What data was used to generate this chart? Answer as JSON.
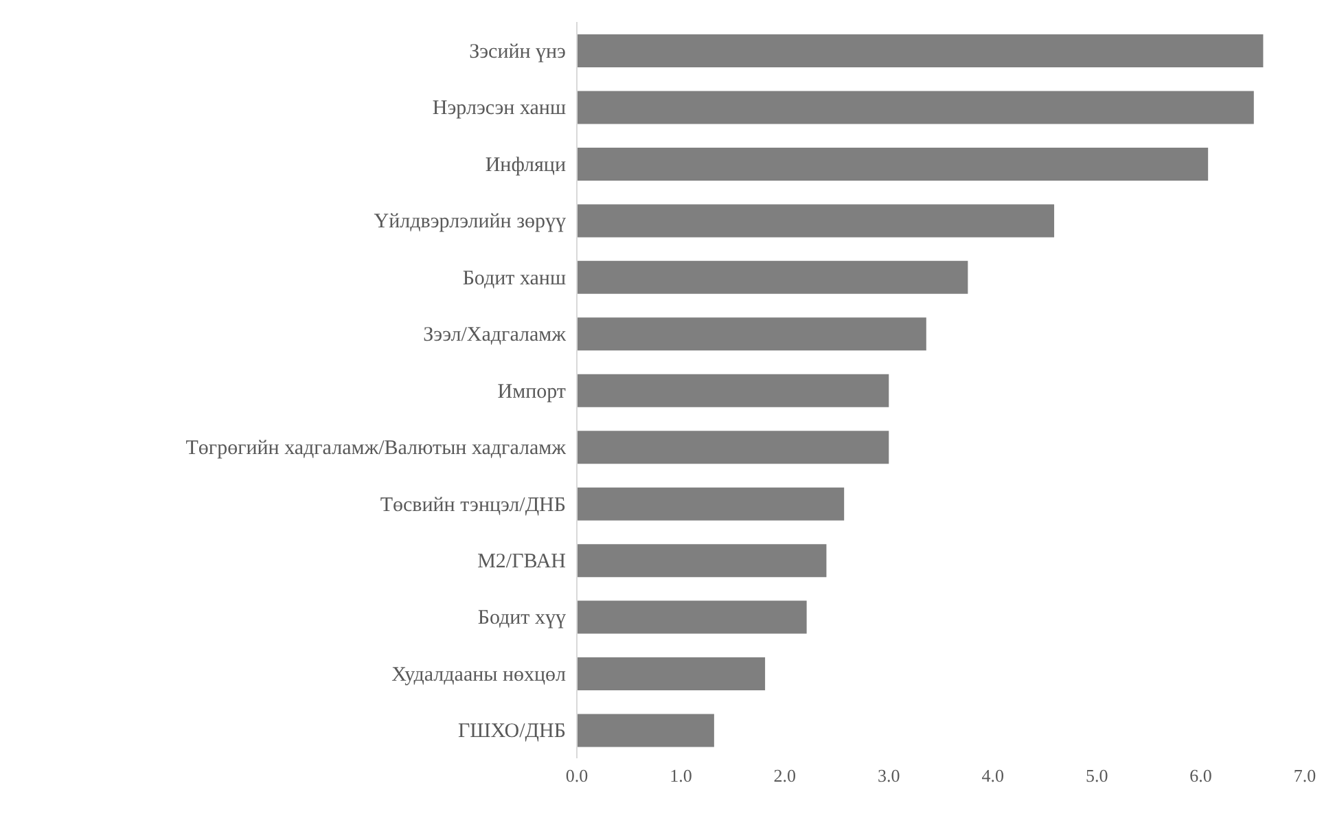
{
  "chart_data": {
    "type": "bar",
    "orientation": "horizontal",
    "categories": [
      "Зэсийн үнэ",
      "Нэрлэсэн ханш",
      "Инфляци",
      "Үйлдвэрлэлийн зөрүү",
      "Бодит ханш",
      "Зээл/Хадгаламж",
      "Импорт",
      "Төгрөгийн хадгаламж/Валютын хадгаламж",
      "Төсвийн тэнцэл/ДНБ",
      "М2/ГВАН",
      "Бодит хүү",
      "Худалдааны нөхцөл",
      "ГШХО/ДНБ"
    ],
    "values": [
      6.6,
      6.51,
      6.07,
      4.59,
      3.76,
      3.36,
      3.0,
      3.0,
      2.57,
      2.4,
      2.21,
      1.81,
      1.32
    ],
    "color": "#7f7f7f",
    "xlim": [
      0,
      7
    ],
    "xticks": [
      {
        "value": 0,
        "label": "0.0"
      },
      {
        "value": 1,
        "label": "1.0"
      },
      {
        "value": 2,
        "label": "2.0"
      },
      {
        "value": 3,
        "label": "3.0"
      },
      {
        "value": 4,
        "label": "4.0"
      },
      {
        "value": 5,
        "label": "5.0"
      },
      {
        "value": 6,
        "label": "6.0"
      },
      {
        "value": 7,
        "label": "7.0"
      }
    ],
    "grid": false,
    "legend": false
  }
}
